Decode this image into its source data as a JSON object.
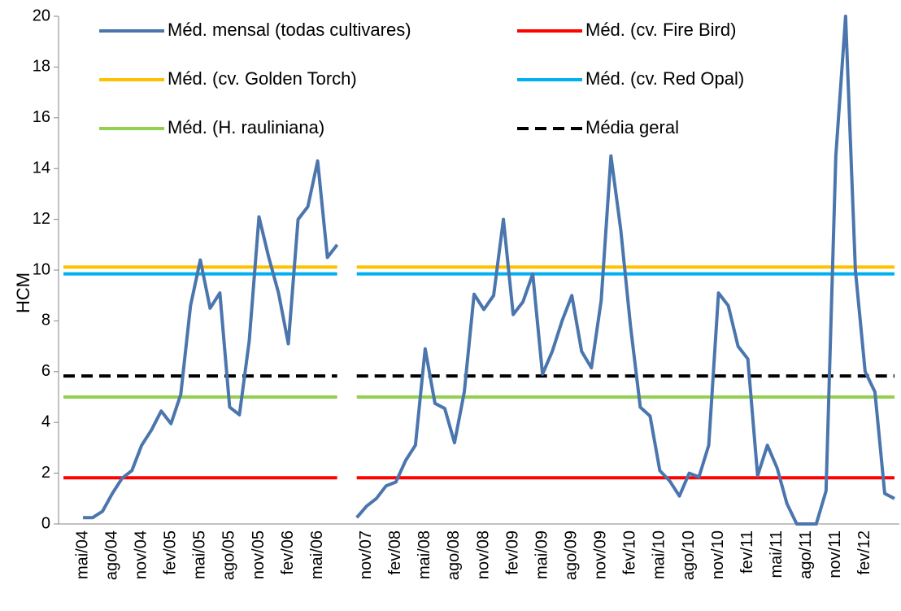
{
  "chart_data": {
    "type": "line",
    "y_label": "HCM",
    "ylim": [
      0,
      20
    ],
    "yticks": [
      0,
      2,
      4,
      6,
      8,
      10,
      12,
      14,
      16,
      18,
      20
    ],
    "categories": [
      null,
      null,
      "mai/04",
      null,
      null,
      "ago/04",
      null,
      null,
      "nov/04",
      null,
      null,
      "fev/05",
      null,
      null,
      "mai/05",
      null,
      null,
      "ago/05",
      null,
      null,
      "nov/05",
      null,
      null,
      "fev/06",
      null,
      null,
      "mai/06",
      null,
      null,
      null,
      null,
      "nov/07",
      null,
      null,
      "fev/08",
      null,
      null,
      "mai/08",
      null,
      null,
      "ago/08",
      null,
      null,
      "nov/08",
      null,
      null,
      "fev/09",
      null,
      null,
      "mai/09",
      null,
      null,
      "ago/09",
      null,
      null,
      "nov/09",
      null,
      null,
      "fev/10",
      null,
      null,
      "mai/10",
      null,
      null,
      "ago/10",
      null,
      null,
      "nov/10",
      null,
      null,
      "fev/11",
      null,
      null,
      "mai/11",
      null,
      null,
      "ago/11",
      null,
      null,
      "nov/11",
      null,
      null,
      "fev/12",
      null,
      null,
      null
    ],
    "series": [
      {
        "name": "Méd. mensal (todas cultivares)",
        "color": "#4a76ad",
        "dashed": false,
        "values": [
          null,
          null,
          0.25,
          0.25,
          0.5,
          1.2,
          1.8,
          2.1,
          3.1,
          3.7,
          4.45,
          3.95,
          5.1,
          8.6,
          10.4,
          8.5,
          9.1,
          4.6,
          4.3,
          7.2,
          12.1,
          10.5,
          9.1,
          7.1,
          12.0,
          12.5,
          14.3,
          10.5,
          11.0,
          null,
          0.25,
          0.7,
          1.0,
          1.5,
          1.65,
          2.5,
          3.1,
          6.9,
          4.75,
          4.55,
          3.2,
          5.2,
          9.05,
          8.45,
          9.0,
          12.0,
          8.25,
          8.75,
          9.85,
          5.9,
          6.8,
          8.0,
          9.0,
          6.8,
          6.15,
          8.8,
          14.5,
          11.6,
          7.8,
          4.6,
          4.25,
          2.1,
          1.7,
          1.1,
          2.0,
          1.85,
          3.1,
          9.1,
          8.6,
          7.0,
          6.5,
          1.9,
          3.1,
          2.2,
          0.8,
          0,
          0,
          0,
          1.3,
          14.5,
          20,
          10,
          6,
          5.2,
          1.2,
          1.0
        ]
      },
      {
        "name": "Méd. (cv. Fire Bird)",
        "color": "#ff0000",
        "dashed": false,
        "values": [
          1.82,
          1.82,
          1.82,
          1.82,
          1.82,
          1.82,
          1.82,
          1.82,
          1.82,
          1.82,
          1.82,
          1.82,
          1.82,
          1.82,
          1.82,
          1.82,
          1.82,
          1.82,
          1.82,
          1.82,
          1.82,
          1.82,
          1.82,
          1.82,
          1.82,
          1.82,
          1.82,
          1.82,
          1.82,
          null,
          1.82,
          1.82,
          1.82,
          1.82,
          1.82,
          1.82,
          1.82,
          1.82,
          1.82,
          1.82,
          1.82,
          1.82,
          1.82,
          1.82,
          1.82,
          1.82,
          1.82,
          1.82,
          1.82,
          1.82,
          1.82,
          1.82,
          1.82,
          1.82,
          1.82,
          1.82,
          1.82,
          1.82,
          1.82,
          1.82,
          1.82,
          1.82,
          1.82,
          1.82,
          1.82,
          1.82,
          1.82,
          1.82,
          1.82,
          1.82,
          1.82,
          1.82,
          1.82,
          1.82,
          1.82,
          1.82,
          1.82,
          1.82,
          1.82,
          1.82,
          1.82,
          1.82,
          1.82,
          1.82,
          1.82,
          1.82
        ]
      },
      {
        "name": "Méd. (cv. Golden Torch)",
        "color": "#ffc000",
        "dashed": false,
        "values": [
          10.12,
          10.12,
          10.12,
          10.12,
          10.12,
          10.12,
          10.12,
          10.12,
          10.12,
          10.12,
          10.12,
          10.12,
          10.12,
          10.12,
          10.12,
          10.12,
          10.12,
          10.12,
          10.12,
          10.12,
          10.12,
          10.12,
          10.12,
          10.12,
          10.12,
          10.12,
          10.12,
          10.12,
          10.12,
          null,
          10.12,
          10.12,
          10.12,
          10.12,
          10.12,
          10.12,
          10.12,
          10.12,
          10.12,
          10.12,
          10.12,
          10.12,
          10.12,
          10.12,
          10.12,
          10.12,
          10.12,
          10.12,
          10.12,
          10.12,
          10.12,
          10.12,
          10.12,
          10.12,
          10.12,
          10.12,
          10.12,
          10.12,
          10.12,
          10.12,
          10.12,
          10.12,
          10.12,
          10.12,
          10.12,
          10.12,
          10.12,
          10.12,
          10.12,
          10.12,
          10.12,
          10.12,
          10.12,
          10.12,
          10.12,
          10.12,
          10.12,
          10.12,
          10.12,
          10.12,
          10.12,
          10.12,
          10.12,
          10.12,
          10.12,
          10.12
        ]
      },
      {
        "name": "Méd. (cv. Red Opal)",
        "color": "#00b0f0",
        "dashed": false,
        "values": [
          9.85,
          9.85,
          9.85,
          9.85,
          9.85,
          9.85,
          9.85,
          9.85,
          9.85,
          9.85,
          9.85,
          9.85,
          9.85,
          9.85,
          9.85,
          9.85,
          9.85,
          9.85,
          9.85,
          9.85,
          9.85,
          9.85,
          9.85,
          9.85,
          9.85,
          9.85,
          9.85,
          9.85,
          9.85,
          null,
          9.85,
          9.85,
          9.85,
          9.85,
          9.85,
          9.85,
          9.85,
          9.85,
          9.85,
          9.85,
          9.85,
          9.85,
          9.85,
          9.85,
          9.85,
          9.85,
          9.85,
          9.85,
          9.85,
          9.85,
          9.85,
          9.85,
          9.85,
          9.85,
          9.85,
          9.85,
          9.85,
          9.85,
          9.85,
          9.85,
          9.85,
          9.85,
          9.85,
          9.85,
          9.85,
          9.85,
          9.85,
          9.85,
          9.85,
          9.85,
          9.85,
          9.85,
          9.85,
          9.85,
          9.85,
          9.85,
          9.85,
          9.85,
          9.85,
          9.85,
          9.85,
          9.85,
          9.85,
          9.85,
          9.85,
          9.85
        ]
      },
      {
        "name": "Méd. (H. rauliniana)",
        "color": "#92d050",
        "dashed": false,
        "values": [
          5.0,
          5.0,
          5.0,
          5.0,
          5.0,
          5.0,
          5.0,
          5.0,
          5.0,
          5.0,
          5.0,
          5.0,
          5.0,
          5.0,
          5.0,
          5.0,
          5.0,
          5.0,
          5.0,
          5.0,
          5.0,
          5.0,
          5.0,
          5.0,
          5.0,
          5.0,
          5.0,
          5.0,
          5.0,
          null,
          5.0,
          5.0,
          5.0,
          5.0,
          5.0,
          5.0,
          5.0,
          5.0,
          5.0,
          5.0,
          5.0,
          5.0,
          5.0,
          5.0,
          5.0,
          5.0,
          5.0,
          5.0,
          5.0,
          5.0,
          5.0,
          5.0,
          5.0,
          5.0,
          5.0,
          5.0,
          5.0,
          5.0,
          5.0,
          5.0,
          5.0,
          5.0,
          5.0,
          5.0,
          5.0,
          5.0,
          5.0,
          5.0,
          5.0,
          5.0,
          5.0,
          5.0,
          5.0,
          5.0,
          5.0,
          5.0,
          5.0,
          5.0,
          5.0,
          5.0,
          5.0,
          5.0,
          5.0,
          5.0,
          5.0,
          5.0
        ]
      },
      {
        "name": "Média geral",
        "color": "#000000",
        "dashed": true,
        "values": [
          5.83,
          5.83,
          5.83,
          5.83,
          5.83,
          5.83,
          5.83,
          5.83,
          5.83,
          5.83,
          5.83,
          5.83,
          5.83,
          5.83,
          5.83,
          5.83,
          5.83,
          5.83,
          5.83,
          5.83,
          5.83,
          5.83,
          5.83,
          5.83,
          5.83,
          5.83,
          5.83,
          5.83,
          5.83,
          null,
          5.83,
          5.83,
          5.83,
          5.83,
          5.83,
          5.83,
          5.83,
          5.83,
          5.83,
          5.83,
          5.83,
          5.83,
          5.83,
          5.83,
          5.83,
          5.83,
          5.83,
          5.83,
          5.83,
          5.83,
          5.83,
          5.83,
          5.83,
          5.83,
          5.83,
          5.83,
          5.83,
          5.83,
          5.83,
          5.83,
          5.83,
          5.83,
          5.83,
          5.83,
          5.83,
          5.83,
          5.83,
          5.83,
          5.83,
          5.83,
          5.83,
          5.83,
          5.83,
          5.83,
          5.83,
          5.83,
          5.83,
          5.83,
          5.83,
          5.83,
          5.83,
          5.83,
          5.83,
          5.83,
          5.83,
          5.83
        ]
      }
    ]
  }
}
